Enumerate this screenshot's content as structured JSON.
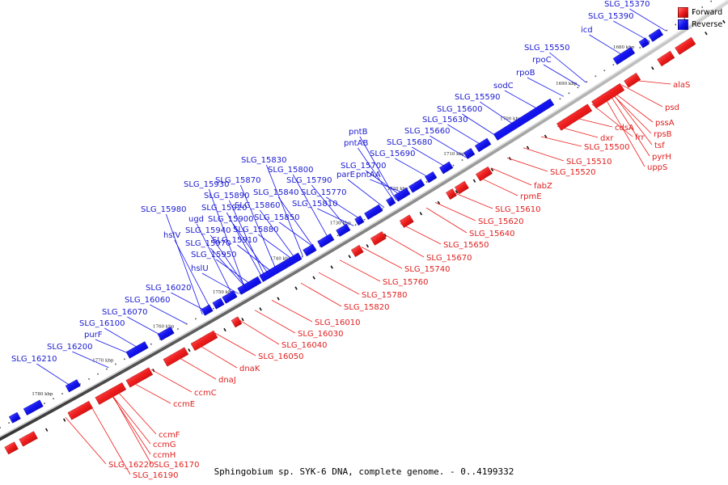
{
  "caption": "Sphingobium sp. SYK-6 DNA, complete genome. - 0..4199332",
  "colors": {
    "forward": "#ee1c1c",
    "reverse": "#1212ee"
  },
  "legend": [
    {
      "label": "Forward",
      "color": "#ee1c1c"
    },
    {
      "label": "Reverse",
      "color": "#1212ee"
    }
  ],
  "kbp_labels": [
    "1680 kbp",
    "1690 kbp",
    "1700 kbp",
    "1710 kbp",
    "1720 kbp",
    "1730 kbp",
    "1740 kbp",
    "1750 kbp",
    "1760 kbp",
    "1770 kbp",
    "1780 kbp"
  ],
  "forward_genes": [
    "alaS",
    "psd",
    "pssA",
    "rpsB",
    "tsf",
    "pyrH",
    "uppS",
    "frr",
    "cdsA",
    "dxr",
    "SLG_15500",
    "SLG_15510",
    "SLG_15520",
    "fabZ",
    "rpmE",
    "SLG_15610",
    "SLG_15620",
    "SLG_15640",
    "SLG_15650",
    "SLG_15670",
    "SLG_15740",
    "SLG_15760",
    "SLG_15780",
    "SLG_15820",
    "SLG_16010",
    "SLG_16030",
    "SLG_16040",
    "SLG_16050",
    "dnaK",
    "dnaJ",
    "ccmC",
    "ccmE",
    "ccmF",
    "ccmG",
    "ccmH",
    "SLG_16170",
    "SLG_16220",
    "SLG_16190"
  ],
  "reverse_genes": [
    "SLG_15370",
    "SLG_15390",
    "icd",
    "SLG_15550",
    "rpoC",
    "rpoB",
    "sodC",
    "SLG_15590",
    "SLG_15600",
    "SLG_15630",
    "SLG_15660",
    "SLG_15680",
    "SLG_15690",
    "SLG_15700",
    "pntB",
    "pntAB",
    "parE",
    "pntAA",
    "SLG_15770",
    "SLG_15790",
    "SLG_15800",
    "SLG_15810",
    "SLG_15830",
    "SLG_15840",
    "SLG_15850",
    "SLG_15860",
    "SLG_15870",
    "SLG_15880",
    "SLG_15890",
    "SLG_15900",
    "SLG_15910",
    "SLG_15920",
    "SLG_15930",
    "SLG_15940",
    "SLG_15950",
    "SLG_15970",
    "SLG_15980",
    "ugd",
    "hslV",
    "hslU",
    "SLG_16020",
    "SLG_16060",
    "SLG_16070",
    "SLG_16100",
    "purF",
    "SLG_16200",
    "SLG_16210"
  ]
}
